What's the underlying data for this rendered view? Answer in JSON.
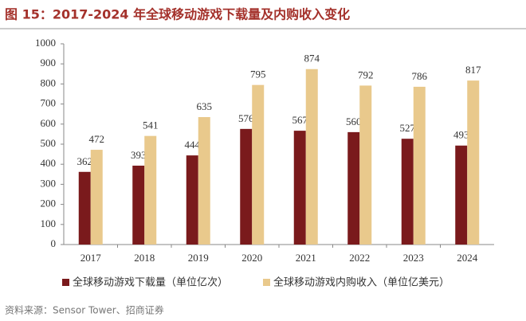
{
  "chart_data": {
    "type": "bar",
    "title": "图 15：2017-2024 年全球移动游戏下载量及内购收入变化",
    "categories": [
      "2017",
      "2018",
      "2019",
      "2020",
      "2021",
      "2022",
      "2023",
      "2024"
    ],
    "series": [
      {
        "name": "全球移动游戏下载量（单位亿次）",
        "color": "#7a1a1c",
        "values": [
          362,
          393,
          444,
          576,
          567,
          560,
          527,
          493
        ]
      },
      {
        "name": "全球移动游戏内购收入（单位亿美元）",
        "color": "#e9c98c",
        "values": [
          472,
          541,
          635,
          795,
          874,
          792,
          786,
          817
        ]
      }
    ],
    "ylim": [
      0,
      1000
    ],
    "yticks": [
      0,
      100,
      200,
      300,
      400,
      500,
      600,
      700,
      800,
      900,
      1000
    ],
    "source": "资料来源：Sensor Tower、招商证券"
  }
}
